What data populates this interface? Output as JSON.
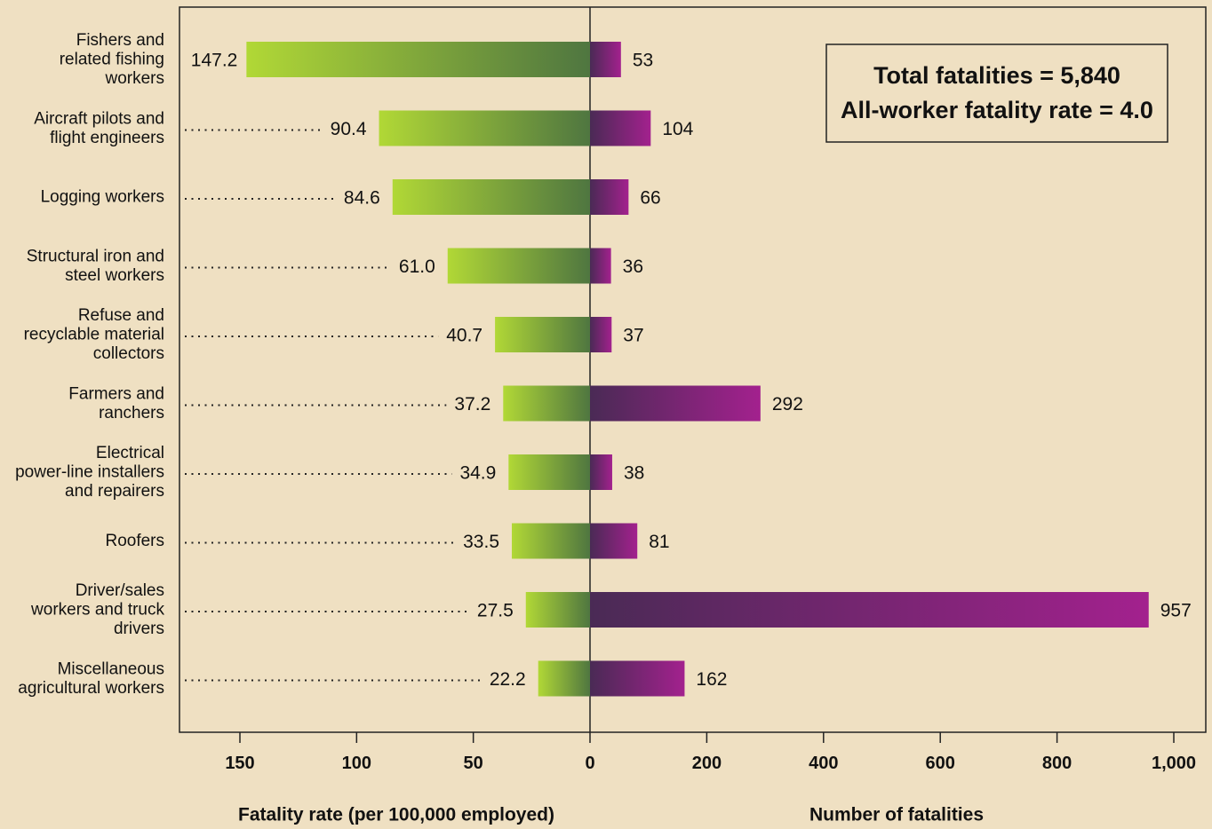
{
  "chart_data": {
    "type": "bar",
    "categories": [
      [
        "Fishers and",
        "related fishing",
        "workers"
      ],
      [
        "Aircraft pilots and",
        "flight engineers"
      ],
      [
        "Logging workers"
      ],
      [
        "Structural iron and",
        "steel workers"
      ],
      [
        "Refuse and",
        "recyclable material",
        "collectors"
      ],
      [
        "Farmers and",
        "ranchers"
      ],
      [
        "Electrical",
        "power-line installers",
        "and repairers"
      ],
      [
        "Roofers"
      ],
      [
        "Driver/sales",
        "workers and truck",
        "drivers"
      ],
      [
        "Miscellaneous",
        "agricultural workers"
      ]
    ],
    "series": [
      {
        "name": "Fatality rate (per 100,000 employed)",
        "values": [
          147.2,
          90.4,
          84.6,
          61.0,
          40.7,
          37.2,
          34.9,
          33.5,
          27.5,
          22.2
        ],
        "labels": [
          "147.2",
          "90.4",
          "84.6",
          "61.0",
          "40.7",
          "37.2",
          "34.9",
          "33.5",
          "27.5",
          "22.2"
        ],
        "color_start": "#b1d836",
        "color_end": "#4f7640"
      },
      {
        "name": "Number of fatalities",
        "values": [
          53,
          104,
          66,
          36,
          37,
          292,
          38,
          81,
          957,
          162
        ],
        "labels": [
          "53",
          "104",
          "66",
          "36",
          "37",
          "292",
          "38",
          "81",
          "957",
          "162"
        ],
        "color_start": "#4a2a55",
        "color_end": "#a3218e"
      }
    ],
    "left_axis": {
      "title": "Fatality rate (per 100,000 employed)",
      "range": [
        175,
        0
      ],
      "ticks": [
        150,
        100,
        50,
        0
      ],
      "tick_labels": [
        "150",
        "100",
        "50",
        "0"
      ]
    },
    "right_axis": {
      "title": "Number of fatalities",
      "range": [
        0,
        1000
      ],
      "ticks": [
        200,
        400,
        600,
        800,
        1000
      ],
      "tick_labels": [
        "200",
        "400",
        "600",
        "800",
        "1,000"
      ]
    },
    "annotation": [
      "Total fatalities = 5,840",
      "All-worker fatality rate = 4.0"
    ],
    "grid": false,
    "background": "#efe0c2"
  }
}
